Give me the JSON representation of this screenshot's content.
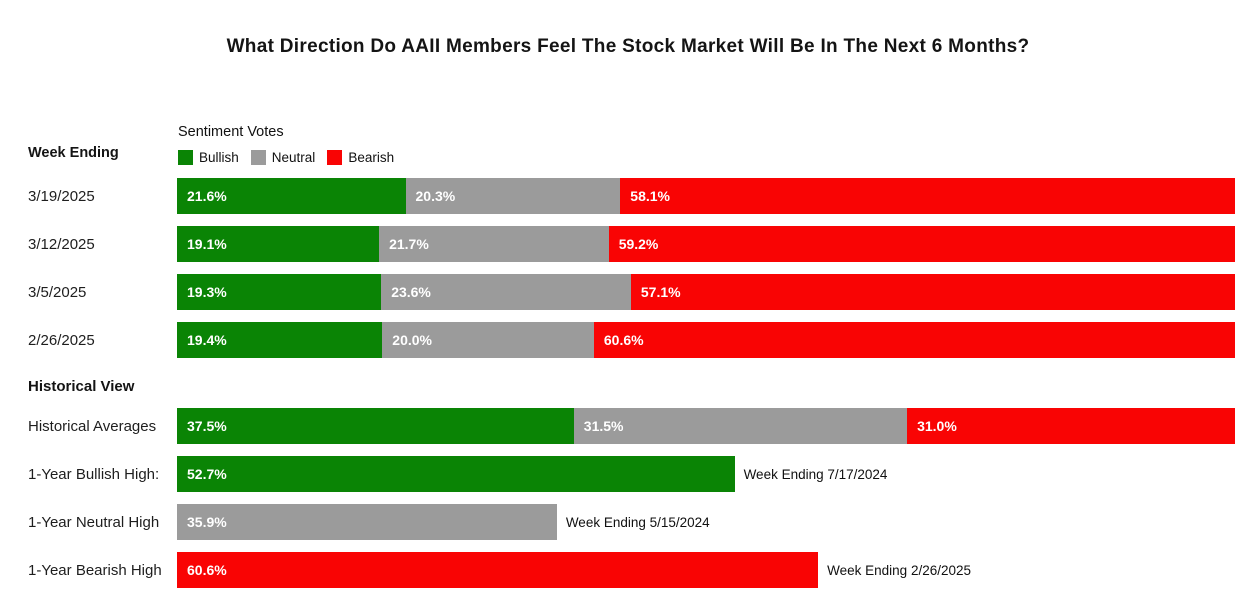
{
  "title": "What Direction Do AAII Members Feel The Stock Market Will Be In The Next 6 Months?",
  "row_axis_label": "Week Ending",
  "section_heading": "Historical View",
  "chart_data": {
    "type": "bar",
    "orientation": "horizontal-stacked",
    "unit": "%",
    "xlim": [
      0,
      100
    ],
    "grid": false,
    "legend": {
      "title": "Sentiment Votes",
      "position": "top-left",
      "entries": [
        {
          "name": "bullish",
          "label": "Bullish",
          "color": "#0a8405"
        },
        {
          "name": "neutral",
          "label": "Neutral",
          "color": "#9b9b9b"
        },
        {
          "name": "bearish",
          "label": "Bearish",
          "color": "#f90404"
        }
      ]
    },
    "weekly_rows": [
      {
        "label": "3/19/2025",
        "bullish": 21.6,
        "neutral": 20.3,
        "bearish": 58.1
      },
      {
        "label": "3/12/2025",
        "bullish": 19.1,
        "neutral": 21.7,
        "bearish": 59.2
      },
      {
        "label": "3/5/2025",
        "bullish": 19.3,
        "neutral": 23.6,
        "bearish": 57.1
      },
      {
        "label": "2/26/2025",
        "bullish": 19.4,
        "neutral": 20.0,
        "bearish": 60.6
      }
    ],
    "historical_rows": [
      {
        "label": "Historical Averages",
        "type": "stacked",
        "bullish": 37.5,
        "neutral": 31.5,
        "bearish": 31.0
      },
      {
        "label": "1-Year Bullish High:",
        "type": "single",
        "series": "bullish",
        "value": 52.7,
        "annotation": "Week Ending 7/17/2024"
      },
      {
        "label": "1-Year Neutral High",
        "type": "single",
        "series": "neutral",
        "value": 35.9,
        "annotation": "Week Ending 5/15/2024"
      },
      {
        "label": "1-Year Bearish High",
        "type": "single",
        "series": "bearish",
        "value": 60.6,
        "annotation": "Week Ending 2/26/2025"
      }
    ]
  }
}
